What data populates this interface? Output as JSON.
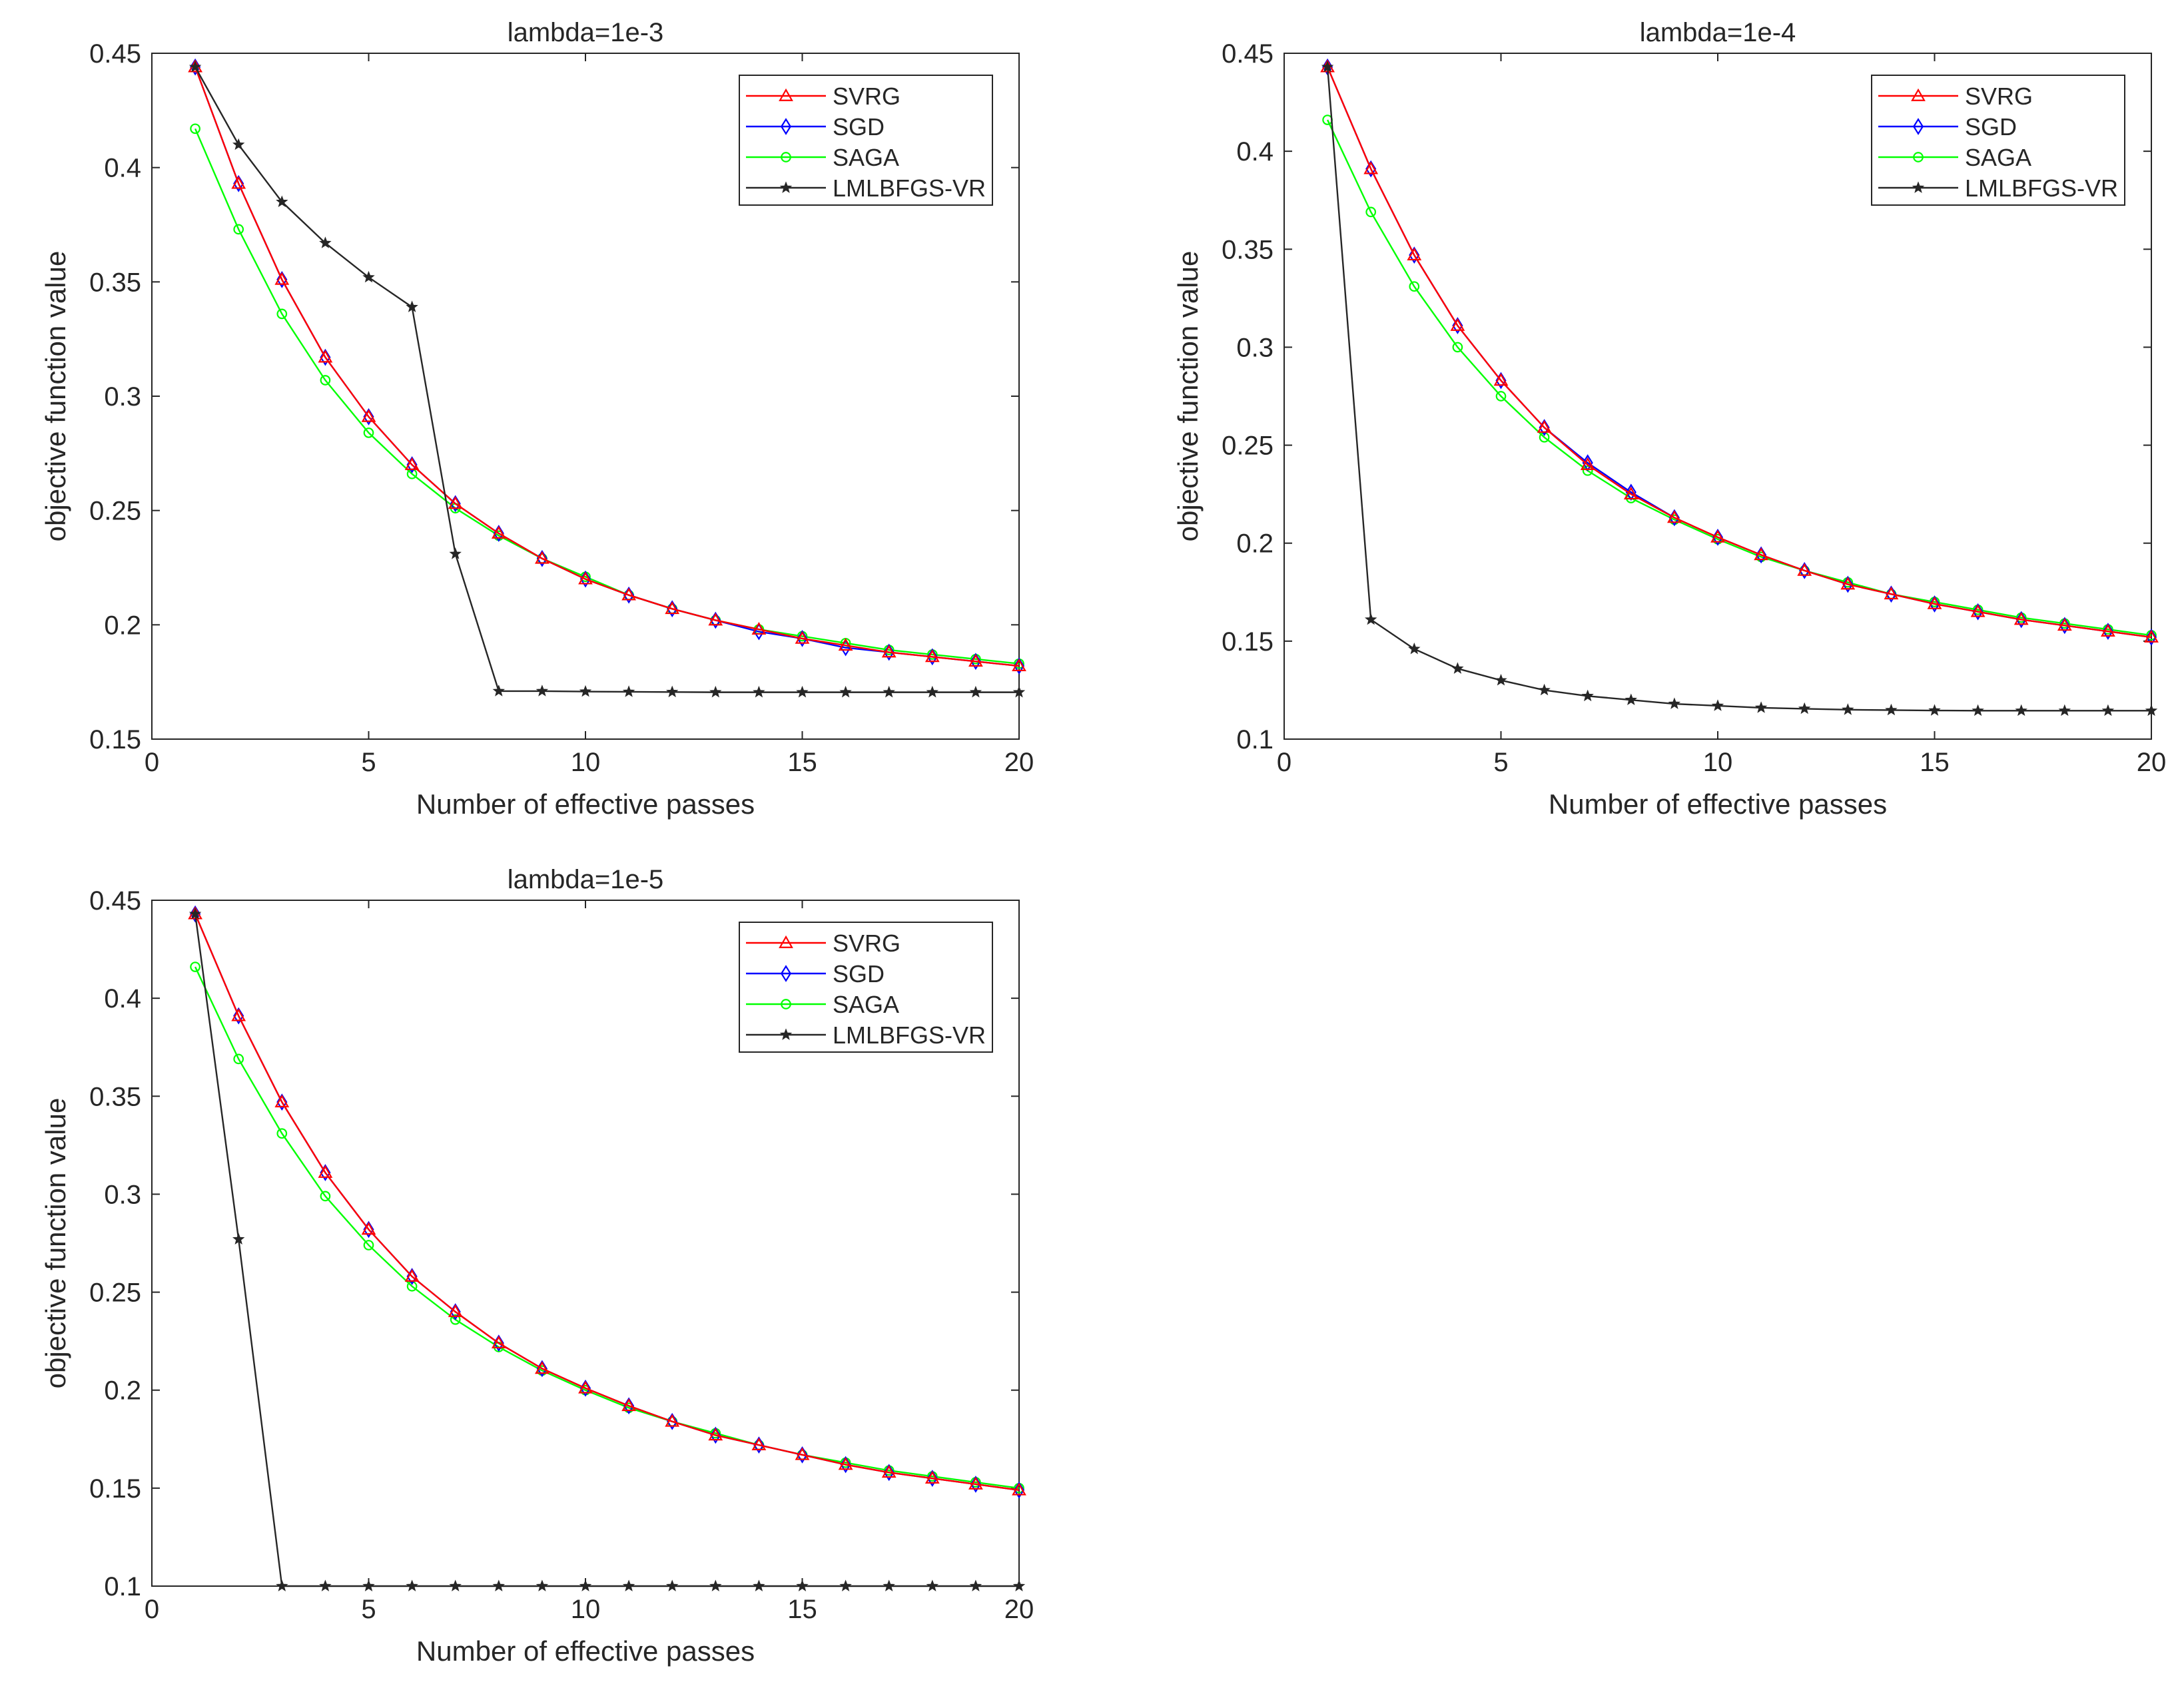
{
  "figure": {
    "background": "#ffffff"
  },
  "colors": {
    "SVRG": "#ff0000",
    "SGD": "#0000ff",
    "SAGA": "#00ff00",
    "LMLBFGS-VR": "#262626"
  },
  "markers": {
    "SVRG": "triangle",
    "SGD": "diamond",
    "SAGA": "circle",
    "LMLBFGS-VR": "star"
  },
  "chart_data": [
    {
      "type": "line",
      "title": "lambda=1e-3",
      "xlabel": "Number of effective passes",
      "ylabel": "objective function value",
      "xlim": [
        0,
        20
      ],
      "ylim": [
        0.15,
        0.45
      ],
      "xticks": [
        0,
        5,
        10,
        15,
        20
      ],
      "xtick_labels": [
        "0",
        "5",
        "10",
        "15",
        "20"
      ],
      "yticks": [
        0.15,
        0.2,
        0.25,
        0.3,
        0.35,
        0.4,
        0.45
      ],
      "ytick_labels": [
        "0.15",
        "0.2",
        "0.25",
        "0.3",
        "0.35",
        "0.4",
        "0.45"
      ],
      "legend_position": "top-right",
      "x": [
        1,
        2,
        3,
        4,
        5,
        6,
        7,
        8,
        9,
        10,
        11,
        12,
        13,
        14,
        15,
        16,
        17,
        18,
        19,
        20
      ],
      "series": [
        {
          "name": "SVRG",
          "values": [
            0.444,
            0.393,
            0.351,
            0.317,
            0.291,
            0.27,
            0.253,
            0.24,
            0.229,
            0.22,
            0.213,
            0.207,
            0.202,
            0.198,
            0.194,
            0.191,
            0.188,
            0.186,
            0.184,
            0.182
          ]
        },
        {
          "name": "SGD",
          "values": [
            0.444,
            0.393,
            0.351,
            0.317,
            0.291,
            0.27,
            0.253,
            0.24,
            0.229,
            0.22,
            0.213,
            0.207,
            0.202,
            0.197,
            0.194,
            0.19,
            0.188,
            0.186,
            0.184,
            0.182
          ]
        },
        {
          "name": "SAGA",
          "values": [
            0.417,
            0.373,
            0.336,
            0.307,
            0.284,
            0.266,
            0.251,
            0.239,
            0.229,
            0.221,
            0.213,
            0.207,
            0.202,
            0.198,
            0.195,
            0.192,
            0.189,
            0.187,
            0.185,
            0.183
          ]
        },
        {
          "name": "LMLBFGS-VR",
          "values": [
            0.444,
            0.41,
            0.385,
            0.367,
            0.352,
            0.339,
            0.231,
            0.171,
            0.171,
            0.1708,
            0.1707,
            0.1706,
            0.1705,
            0.1705,
            0.1705,
            0.1705,
            0.1705,
            0.1705,
            0.1705,
            0.1705
          ]
        }
      ]
    },
    {
      "type": "line",
      "title": "lambda=1e-4",
      "xlabel": "Number of effective passes",
      "ylabel": "objective function value",
      "xlim": [
        0,
        20
      ],
      "ylim": [
        0.1,
        0.45
      ],
      "xticks": [
        0,
        5,
        10,
        15,
        20
      ],
      "xtick_labels": [
        "0",
        "5",
        "10",
        "15",
        "20"
      ],
      "yticks": [
        0.1,
        0.15,
        0.2,
        0.25,
        0.3,
        0.35,
        0.4,
        0.45
      ],
      "ytick_labels": [
        "0.1",
        "0.15",
        "0.2",
        "0.25",
        "0.3",
        "0.35",
        "0.4",
        "0.45"
      ],
      "legend_position": "top-right",
      "x": [
        1,
        2,
        3,
        4,
        5,
        6,
        7,
        8,
        9,
        10,
        11,
        12,
        13,
        14,
        15,
        16,
        17,
        18,
        19,
        20
      ],
      "series": [
        {
          "name": "SVRG",
          "values": [
            0.443,
            0.391,
            0.347,
            0.311,
            0.283,
            0.259,
            0.24,
            0.225,
            0.213,
            0.203,
            0.194,
            0.186,
            0.179,
            0.174,
            0.169,
            0.165,
            0.161,
            0.158,
            0.155,
            0.152
          ]
        },
        {
          "name": "SGD",
          "values": [
            0.443,
            0.391,
            0.347,
            0.311,
            0.283,
            0.259,
            0.241,
            0.226,
            0.213,
            0.203,
            0.194,
            0.186,
            0.179,
            0.174,
            0.169,
            0.165,
            0.161,
            0.158,
            0.155,
            0.152
          ]
        },
        {
          "name": "SAGA",
          "values": [
            0.416,
            0.369,
            0.331,
            0.3,
            0.275,
            0.254,
            0.237,
            0.223,
            0.212,
            0.202,
            0.193,
            0.186,
            0.18,
            0.174,
            0.17,
            0.166,
            0.162,
            0.159,
            0.156,
            0.153
          ]
        },
        {
          "name": "LMLBFGS-VR",
          "values": [
            0.443,
            0.161,
            0.146,
            0.136,
            0.13,
            0.125,
            0.122,
            0.12,
            0.118,
            0.117,
            0.116,
            0.1155,
            0.115,
            0.1148,
            0.1146,
            0.1145,
            0.1145,
            0.1145,
            0.1145,
            0.1145
          ]
        }
      ]
    },
    {
      "type": "line",
      "title": "lambda=1e-5",
      "xlabel": "Number of effective passes",
      "ylabel": "objective function value",
      "xlim": [
        0,
        20
      ],
      "ylim": [
        0.1,
        0.45
      ],
      "xticks": [
        0,
        5,
        10,
        15,
        20
      ],
      "xtick_labels": [
        "0",
        "5",
        "10",
        "15",
        "20"
      ],
      "yticks": [
        0.1,
        0.15,
        0.2,
        0.25,
        0.3,
        0.35,
        0.4,
        0.45
      ],
      "ytick_labels": [
        "0.1",
        "0.15",
        "0.2",
        "0.25",
        "0.3",
        "0.35",
        "0.4",
        "0.45"
      ],
      "legend_position": "top-right",
      "x": [
        1,
        2,
        3,
        4,
        5,
        6,
        7,
        8,
        9,
        10,
        11,
        12,
        13,
        14,
        15,
        16,
        17,
        18,
        19,
        20
      ],
      "series": [
        {
          "name": "SVRG",
          "values": [
            0.443,
            0.391,
            0.347,
            0.311,
            0.282,
            0.258,
            0.24,
            0.224,
            0.211,
            0.201,
            0.192,
            0.184,
            0.177,
            0.172,
            0.167,
            0.162,
            0.158,
            0.155,
            0.152,
            0.149
          ]
        },
        {
          "name": "SGD",
          "values": [
            0.443,
            0.391,
            0.347,
            0.311,
            0.282,
            0.258,
            0.24,
            0.224,
            0.211,
            0.201,
            0.192,
            0.184,
            0.177,
            0.172,
            0.167,
            0.162,
            0.158,
            0.155,
            0.152,
            0.149
          ]
        },
        {
          "name": "SAGA",
          "values": [
            0.416,
            0.369,
            0.331,
            0.299,
            0.274,
            0.253,
            0.236,
            0.222,
            0.21,
            0.2,
            0.191,
            0.184,
            0.178,
            0.172,
            0.167,
            0.163,
            0.159,
            0.156,
            0.153,
            0.15
          ]
        },
        {
          "name": "LMLBFGS-VR",
          "values": [
            0.443,
            0.277,
            0.1,
            0.1,
            0.1,
            0.1,
            0.1,
            0.1,
            0.1,
            0.1,
            0.1,
            0.1,
            0.1,
            0.1,
            0.1,
            0.1,
            0.1,
            0.1,
            0.1,
            0.1
          ]
        }
      ]
    }
  ]
}
